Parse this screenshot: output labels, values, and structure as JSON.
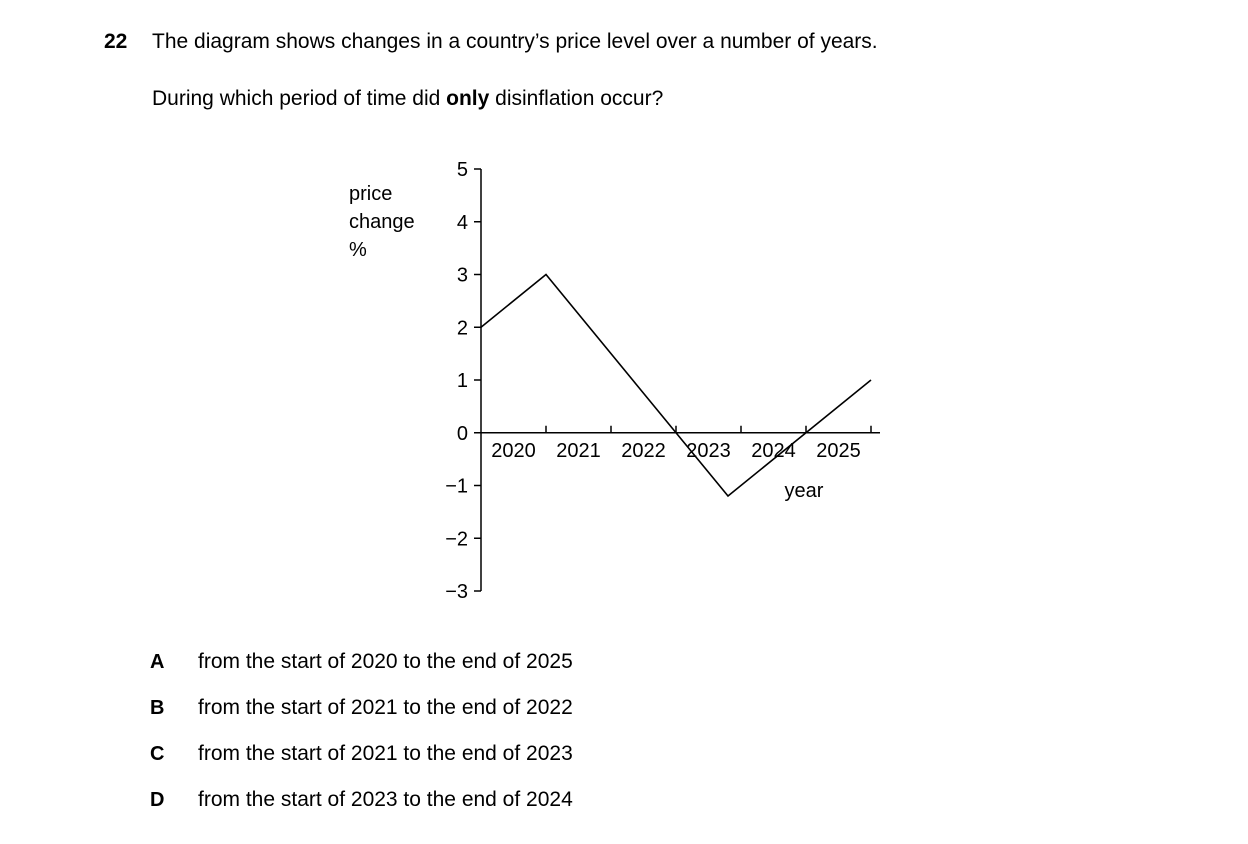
{
  "question": {
    "number": "22",
    "text": "The diagram shows changes in a country’s price level over a number of years.",
    "sub_prefix": "During which period of time did ",
    "sub_bold": "only",
    "sub_suffix": " disinflation occur?"
  },
  "chart_data": {
    "type": "line",
    "ylabel": [
      "price",
      "change",
      "%"
    ],
    "xlabel": "year",
    "ylim": [
      -3,
      5
    ],
    "yticks": [
      5,
      4,
      3,
      2,
      1,
      0,
      -1,
      -2,
      -3
    ],
    "ytick_labels": [
      "5",
      "4",
      "3",
      "2",
      "1",
      "0",
      "−1",
      "−2",
      "−3"
    ],
    "categories": [
      "2020",
      "2021",
      "2022",
      "2023",
      "2024",
      "2025"
    ],
    "series": [
      {
        "x": [
          0,
          1,
          3.8,
          6
        ],
        "y": [
          2,
          3,
          -1.2,
          1
        ]
      }
    ],
    "grid": false
  },
  "options": [
    {
      "letter": "A",
      "text": "from the start of 2020 to the end of 2025"
    },
    {
      "letter": "B",
      "text": "from the start of 2021 to the end of 2022"
    },
    {
      "letter": "C",
      "text": "from the start of 2021 to the end of 2023"
    },
    {
      "letter": "D",
      "text": "from the start of 2023 to the end of 2024"
    }
  ]
}
